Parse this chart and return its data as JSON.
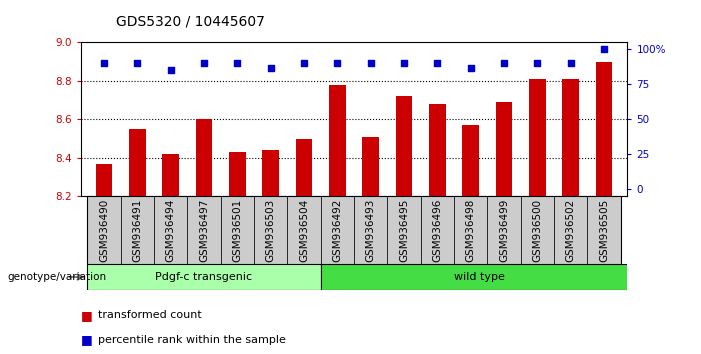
{
  "title": "GDS5320 / 10445607",
  "categories": [
    "GSM936490",
    "GSM936491",
    "GSM936494",
    "GSM936497",
    "GSM936501",
    "GSM936503",
    "GSM936504",
    "GSM936492",
    "GSM936493",
    "GSM936495",
    "GSM936496",
    "GSM936498",
    "GSM936499",
    "GSM936500",
    "GSM936502",
    "GSM936505"
  ],
  "bar_values": [
    8.37,
    8.55,
    8.42,
    8.6,
    8.43,
    8.44,
    8.5,
    8.78,
    8.51,
    8.72,
    8.68,
    8.57,
    8.69,
    8.81,
    8.81,
    8.9
  ],
  "percentile_values": [
    90,
    90,
    85,
    90,
    90,
    87,
    90,
    90,
    90,
    90,
    90,
    87,
    90,
    90,
    90,
    100
  ],
  "ylim": [
    8.2,
    9.0
  ],
  "yticks_left": [
    8.2,
    8.4,
    8.6,
    8.8,
    9.0
  ],
  "yticks_right": [
    0,
    25,
    50,
    75,
    100
  ],
  "bar_color": "#cc0000",
  "dot_color": "#0000cc",
  "group1_label": "Pdgf-c transgenic",
  "group2_label": "wild type",
  "group1_count": 7,
  "group2_count": 9,
  "group1_color": "#aaffaa",
  "group2_color": "#44dd44",
  "xlabel_left": "genotype/variation",
  "legend_bar": "transformed count",
  "legend_dot": "percentile rank within the sample",
  "background_color": "#ffffff",
  "label_box_color": "#cccccc",
  "dotted_lines": [
    8.4,
    8.6,
    8.8
  ],
  "title_fontsize": 10,
  "tick_fontsize": 7.5,
  "label_fontsize": 7.5,
  "bar_bottom": 8.2
}
